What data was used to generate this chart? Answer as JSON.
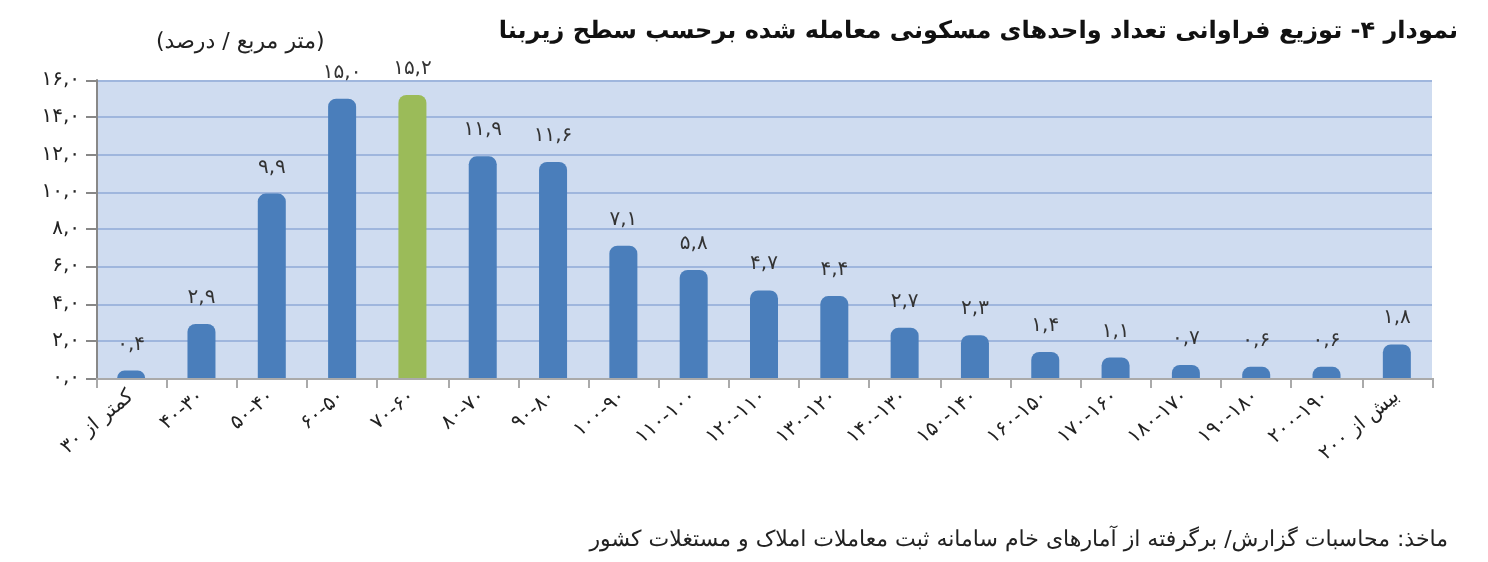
{
  "chart_data": {
    "type": "bar",
    "title": "نمودار ۴- توزیع فراوانی تعداد واحدهای مسکونی معامله شده برحسب سطح زیربنا",
    "ylabel": "(متر مربع / درصد)",
    "annotations": [
      "ماخذ: محاسبات گزارش/ برگرفته از آمارهای خام سامانه ثبت معاملات املاک و مستغلات کشور"
    ],
    "categories": [
      "کمتر از ۳۰",
      "۴۰-۳۰",
      "۵۰-۴۰",
      "۶۰-۵۰",
      "۷۰-۶۰",
      "۸۰-۷۰",
      "۹۰-۸۰",
      "۱۰۰-۹۰",
      "۱۱۰-۱۰۰",
      "۱۲۰-۱۱۰",
      "۱۳۰-۱۲۰",
      "۱۴۰-۱۳۰",
      "۱۵۰-۱۴۰",
      "۱۶۰-۱۵۰",
      "۱۷۰-۱۶۰",
      "۱۸۰-۱۷۰",
      "۱۹۰-۱۸۰",
      "۲۰۰-۱۹۰",
      "بیش از ۲۰۰"
    ],
    "values": [
      0.4,
      2.9,
      9.9,
      15.0,
      15.2,
      11.9,
      11.6,
      7.1,
      5.8,
      4.7,
      4.4,
      2.7,
      2.3,
      1.4,
      1.1,
      0.7,
      0.6,
      0.6,
      1.8
    ],
    "value_labels": [
      "۰,۴",
      "۲,۹",
      "۹,۹",
      "۱۵,۰",
      "۱۵,۲",
      "۱۱,۹",
      "۱۱,۶",
      "۷,۱",
      "۵,۸",
      "۴,۷",
      "۴,۴",
      "۲,۷",
      "۲,۳",
      "۱,۴",
      "۱,۱",
      "۰,۷",
      "۰,۶",
      "۰,۶",
      "۱,۸"
    ],
    "colors": [
      "#4a7ebb",
      "#4a7ebb",
      "#4a7ebb",
      "#4a7ebb",
      "#9bbb59",
      "#4a7ebb",
      "#4a7ebb",
      "#4a7ebb",
      "#4a7ebb",
      "#4a7ebb",
      "#4a7ebb",
      "#4a7ebb",
      "#4a7ebb",
      "#4a7ebb",
      "#4a7ebb",
      "#4a7ebb",
      "#4a7ebb",
      "#4a7ebb",
      "#4a7ebb"
    ],
    "ylim": [
      0,
      16
    ],
    "yticks": [
      {
        "value": 0,
        "label": "۰,۰"
      },
      {
        "value": 2,
        "label": "۲,۰"
      },
      {
        "value": 4,
        "label": "۴,۰"
      },
      {
        "value": 6,
        "label": "۶,۰"
      },
      {
        "value": 8,
        "label": "۸,۰"
      },
      {
        "value": 10,
        "label": "۱۰,۰"
      },
      {
        "value": 12,
        "label": "۱۲,۰"
      },
      {
        "value": 14,
        "label": "۱۴,۰"
      },
      {
        "value": 16,
        "label": "۱۶,۰"
      }
    ],
    "grid": "y"
  }
}
